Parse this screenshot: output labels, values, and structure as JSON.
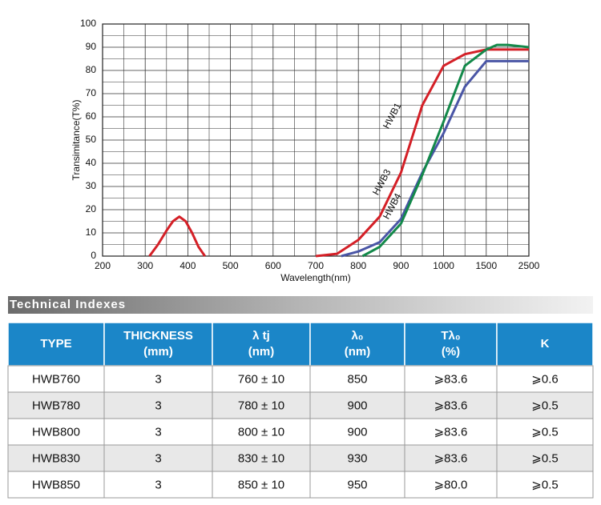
{
  "chart_data": {
    "type": "line",
    "xlabel": "Wavelength(nm)",
    "ylabel": "Transimitance(T%)",
    "xlim": [
      200,
      2500
    ],
    "xticks": [
      200,
      300,
      400,
      500,
      600,
      700,
      800,
      900,
      1000,
      1500,
      2500
    ],
    "ylim": [
      0,
      100
    ],
    "yticks": [
      0,
      10,
      20,
      30,
      40,
      50,
      60,
      70,
      80,
      90,
      100
    ],
    "grid": true,
    "series": [
      {
        "color": "#d42027",
        "x": [
          310,
          330,
          350,
          365,
          380,
          395,
          410,
          425,
          440,
          null,
          700,
          750,
          800,
          850,
          900,
          950,
          1000,
          1250,
          1500,
          2500
        ],
        "values": [
          0,
          5,
          11,
          15,
          17,
          15,
          10,
          4,
          0,
          null,
          0,
          1,
          7,
          17,
          36,
          65,
          82,
          87,
          89,
          89
        ]
      },
      {
        "color": "#4a56a6",
        "x": [
          760,
          800,
          850,
          900,
          950,
          1000,
          1250,
          1500,
          2500
        ],
        "values": [
          0,
          2,
          6,
          16,
          36,
          53,
          73,
          84,
          84
        ]
      },
      {
        "color": "#13894a",
        "x": [
          810,
          850,
          900,
          950,
          1000,
          1250,
          1500,
          1750,
          2000,
          2500
        ],
        "values": [
          0,
          4,
          14,
          35,
          58,
          82,
          89,
          91,
          91,
          90
        ]
      }
    ],
    "annotations": [
      "HWB1",
      "HWB3",
      "HWB4"
    ]
  },
  "section_title": "Technical Indexes",
  "table": {
    "header": [
      [
        "TYPE"
      ],
      [
        "THICKNESS",
        "(mm)"
      ],
      [
        "λ tj",
        "(nm)"
      ],
      [
        "λ₀",
        "(nm)"
      ],
      [
        "Tλ₀",
        "(%)"
      ],
      [
        "K"
      ]
    ],
    "rows": [
      [
        "HWB760",
        "3",
        "760 ± 10",
        "850",
        "⩾83.6",
        "⩾0.6"
      ],
      [
        "HWB780",
        "3",
        "780 ± 10",
        "900",
        "⩾83.6",
        "⩾0.5"
      ],
      [
        "HWB800",
        "3",
        "800 ± 10",
        "900",
        "⩾83.6",
        "⩾0.5"
      ],
      [
        "HWB830",
        "3",
        "830 ± 10",
        "930",
        "⩾83.6",
        "⩾0.5"
      ],
      [
        "HWB850",
        "3",
        "850 ± 10",
        "950",
        "⩾80.0",
        "⩾0.5"
      ]
    ]
  }
}
